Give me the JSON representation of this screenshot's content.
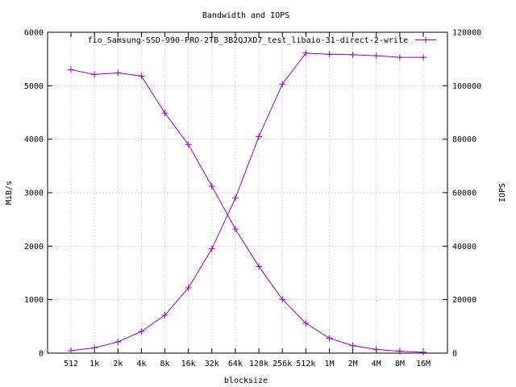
{
  "chart_data": {
    "type": "line",
    "title": "Bandwidth and IOPS",
    "xlabel": "blocksize",
    "ylabel": "MiB/s",
    "y2label": "IOPS",
    "categories": [
      "512",
      "1k",
      "2k",
      "4k",
      "8k",
      "16k",
      "32k",
      "64k",
      "128k",
      "256k",
      "512k",
      "1M",
      "2M",
      "4M",
      "8M",
      "16M"
    ],
    "ylim": [
      0,
      6000
    ],
    "yticks": [
      "0",
      "1000",
      "2000",
      "3000",
      "4000",
      "5000",
      "6000"
    ],
    "y2lim": [
      0,
      120000
    ],
    "y2ticks": [
      "0",
      "20000",
      "40000",
      "60000",
      "80000",
      "100000",
      "120000"
    ],
    "grid": true,
    "legend_position": "top-right",
    "legend_label": "fio_Samsung-SSD-990-PRO-2TB_3B2QJXD7_test_libaio-31-direct-2-write",
    "series_color": "#9400d3",
    "series": [
      {
        "axis": "y",
        "values": [
          45,
          100,
          210,
          405,
          710,
          1220,
          1950,
          2900,
          4050,
          5030,
          5610,
          5590,
          5580,
          5560,
          5530,
          5530
        ]
      },
      {
        "axis": "y2",
        "values": [
          106000,
          104200,
          104800,
          103600,
          89800,
          78000,
          62400,
          46400,
          32400,
          20100,
          11200,
          5600,
          2800,
          1400,
          700,
          350
        ]
      }
    ]
  }
}
